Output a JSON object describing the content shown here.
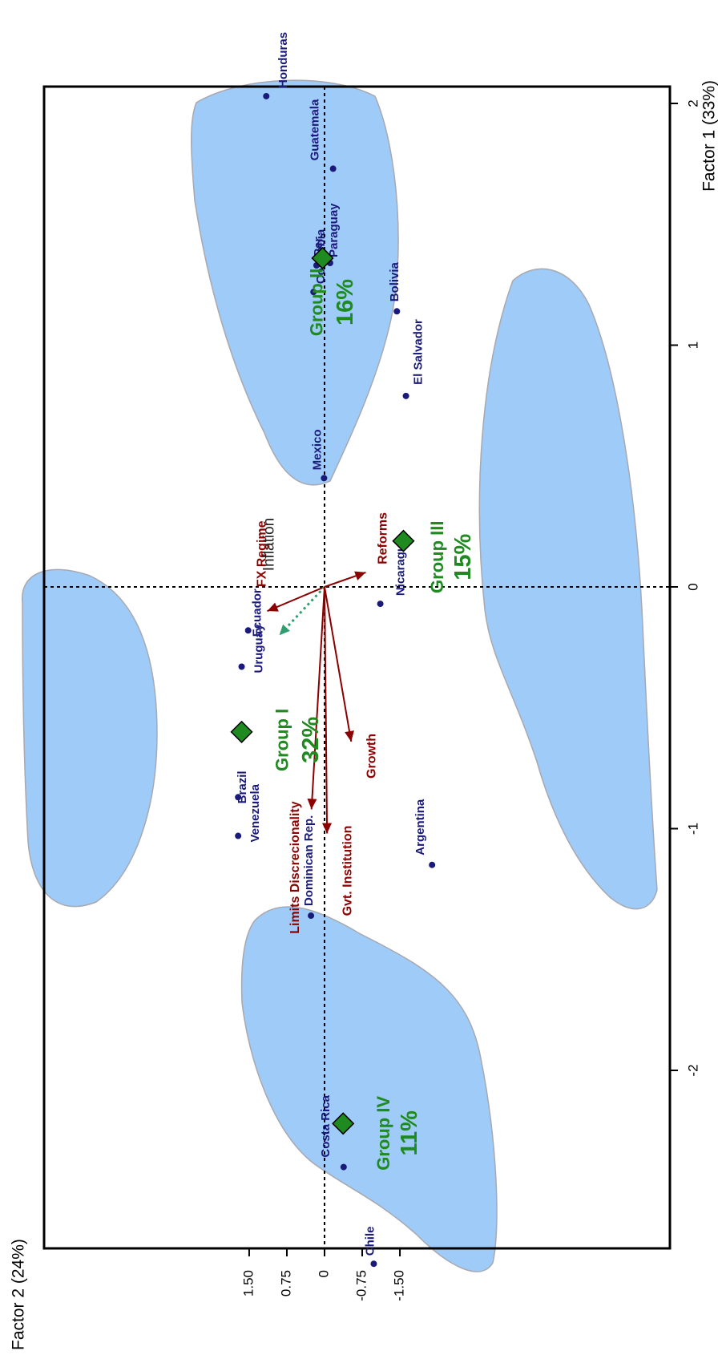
{
  "chart_data": {
    "type": "scatter",
    "xlabel": "Factor 1 (33%)",
    "ylabel": "Factor 2 (24%)",
    "xlim": [
      -2.85,
      2.1
    ],
    "ylim": [
      -2.05,
      1.8
    ],
    "x_ticks": [
      -2,
      -1,
      0,
      1,
      2
    ],
    "x_tick_labels": [
      "-2",
      "-1",
      "0",
      "1",
      "2"
    ],
    "y_ticks": [
      1.5,
      0.75,
      0,
      -0.75,
      -1.5
    ],
    "y_tick_labels": [
      "1.50",
      "0.75",
      "0",
      "-0.75",
      "-1.50"
    ],
    "points": [
      {
        "label": "Honduras",
        "x": 2.03,
        "y": 1.16
      },
      {
        "label": "Guatemala",
        "x": 1.73,
        "y": -0.17
      },
      {
        "label": "Peru",
        "display": "Per.",
        "x": 1.34,
        "y": -0.11
      },
      {
        "label": "Paraguay",
        "x": 1.33,
        "y": 0.16
      },
      {
        "label": "Colombia",
        "x": 1.22,
        "y": 0.22
      },
      {
        "label": "Mexico",
        "x": 0.45,
        "y": 0.01
      },
      {
        "label": "Bolivia",
        "x": 1.14,
        "y": -1.44
      },
      {
        "label": "El Salvador",
        "x": 0.79,
        "y": -1.62
      },
      {
        "label": "Nicaragua",
        "x": -0.07,
        "y": -1.11
      },
      {
        "label": "Argentina",
        "x": -1.15,
        "y": -2.14
      },
      {
        "label": "Ecuador",
        "x": -0.18,
        "y": 1.52
      },
      {
        "label": "Uruguay",
        "x": -0.33,
        "y": 1.65
      },
      {
        "label": "Brazil",
        "x": -0.87,
        "y": 1.72
      },
      {
        "label": "Venezuela",
        "x": -1.03,
        "y": 1.72
      },
      {
        "label": "Dominican Rep.",
        "x": -1.36,
        "y": 0.27
      },
      {
        "label": "Costa Rica",
        "x": -2.4,
        "y": -0.38
      },
      {
        "label": "Chile",
        "x": -2.8,
        "y": -0.98
      }
    ],
    "centroids": [
      {
        "group": "Group I",
        "pct": "32%",
        "x": -0.6,
        "y": 1.65
      },
      {
        "group": "Group II",
        "pct": "16%",
        "x": 1.36,
        "y": 0.04
      },
      {
        "group": "Group III",
        "pct": "15%",
        "x": 0.19,
        "y": -1.57
      },
      {
        "group": "Group IV",
        "pct": "11%",
        "x": -2.22,
        "y": -0.37
      }
    ],
    "vectors": [
      {
        "label": "FX Regime",
        "x": -0.1,
        "y": 1.14,
        "style": "solid"
      },
      {
        "label": "Inflation",
        "x": -0.2,
        "y": 0.9,
        "style": "dotted"
      },
      {
        "label": "Reforms",
        "x": 0.06,
        "y": -0.82,
        "style": "solid"
      },
      {
        "label": "Limits Discrecionality",
        "x": -0.92,
        "y": 0.26,
        "style": "solid"
      },
      {
        "label": "Gvt. Institution",
        "x": -1.02,
        "y": -0.05,
        "style": "solid"
      },
      {
        "label": "Growth",
        "x": -0.64,
        "y": -0.53,
        "style": "solid"
      }
    ],
    "colors": {
      "cluster_fill": "#9ecbf7",
      "vector": "#8b0000",
      "inflation": "#2e9e6e",
      "centroid": "#1f8a1f",
      "point": "#1a1a7a"
    }
  }
}
